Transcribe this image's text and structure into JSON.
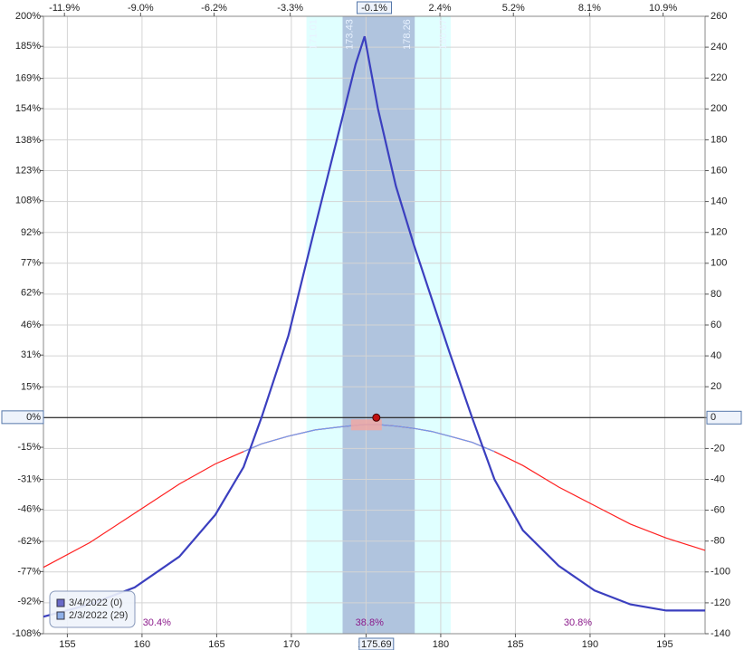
{
  "chart_data": {
    "type": "line",
    "x": [
      153.4,
      156.5,
      159.5,
      162.5,
      164.9,
      166.8,
      168.0,
      169.8,
      171.6,
      173.3,
      174.3,
      174.9,
      175.8,
      177.0,
      178.2,
      179.4,
      180.6,
      182.1,
      183.6,
      185.5,
      187.9,
      190.3,
      192.7,
      195.1,
      197.7
    ],
    "series": [
      {
        "name": "3/4/2022 (0)",
        "color": "#3b3fbf",
        "legend_color": "#6a6ac8",
        "values": [
          -129,
          -121,
          -110,
          -90,
          -63,
          -32,
          0,
          53,
          124,
          190,
          229,
          247,
          200,
          150,
          112,
          77,
          42,
          0,
          -40,
          -73,
          -96,
          -112,
          -121,
          -125,
          -125
        ]
      },
      {
        "name": "2/3/2022 (29)",
        "color": "#ff2020",
        "inner_color": "#6f9cf0",
        "legend_color": "#8fb0e8",
        "values": [
          -97,
          -81,
          -62,
          -43,
          -30,
          -22,
          -17,
          -12,
          -8,
          -6,
          -5,
          -4.5,
          -4.5,
          -5.5,
          -7,
          -9,
          -12,
          -16,
          -22,
          -31,
          -45,
          -57,
          -69,
          -78,
          -86
        ]
      }
    ],
    "xlim": [
      153.4,
      197.7
    ],
    "xticks": [
      155,
      160,
      165,
      170,
      175,
      180,
      185,
      190,
      195
    ],
    "x2lim": [
      -12.7,
      12.5
    ],
    "x2ticks": [
      {
        "value": -11.9,
        "label": "-11.9%"
      },
      {
        "value": -9.0,
        "label": "-9.0%"
      },
      {
        "value": -6.2,
        "label": "-6.2%"
      },
      {
        "value": -3.3,
        "label": "-3.3%"
      },
      {
        "value": 2.4,
        "label": "2.4%"
      },
      {
        "value": 5.2,
        "label": "5.2%"
      },
      {
        "value": 8.1,
        "label": "8.1%"
      },
      {
        "value": 10.9,
        "label": "10.9%"
      }
    ],
    "ylim": [
      -140,
      260
    ],
    "yticks": [
      260,
      240,
      220,
      200,
      180,
      160,
      140,
      120,
      100,
      80,
      60,
      40,
      20,
      0,
      -20,
      -40,
      -60,
      -80,
      -100,
      -120,
      -140
    ],
    "y2lim": [
      -108,
      200
    ],
    "y2ticks": [
      {
        "value": 200,
        "label": "200%"
      },
      {
        "value": 185,
        "label": "185%"
      },
      {
        "value": 169,
        "label": "169%"
      },
      {
        "value": 154,
        "label": "154%"
      },
      {
        "value": 138,
        "label": "138%"
      },
      {
        "value": 123,
        "label": "123%"
      },
      {
        "value": 108,
        "label": "108%"
      },
      {
        "value": 92,
        "label": "92%"
      },
      {
        "value": 77,
        "label": "77%"
      },
      {
        "value": 62,
        "label": "62%"
      },
      {
        "value": 46,
        "label": "46%"
      },
      {
        "value": 31,
        "label": "31%"
      },
      {
        "value": 15,
        "label": "15%"
      },
      {
        "value": 0,
        "label": "0%"
      },
      {
        "value": -15,
        "label": "-15%"
      },
      {
        "value": -31,
        "label": "-31%"
      },
      {
        "value": -46,
        "label": "-46%"
      },
      {
        "value": -62,
        "label": "-62%"
      },
      {
        "value": -77,
        "label": "-77%"
      },
      {
        "value": -92,
        "label": "-92%"
      },
      {
        "value": -108,
        "label": "-108%"
      }
    ],
    "grid": true,
    "bands": [
      {
        "from": 171.01,
        "to": 180.67,
        "color": "#e0ffff"
      },
      {
        "from": 173.43,
        "to": 178.26,
        "color": "#b0c4de"
      }
    ],
    "zone_labels": [
      "30.4%",
      "38.8%",
      "30.8%"
    ],
    "zone_label_color": "#8b1a8b",
    "x_marker": 175.69,
    "x2_marker": {
      "value": -0.1,
      "label": "-0.1%"
    },
    "current_pl": 0,
    "legend": "bottom-left"
  }
}
